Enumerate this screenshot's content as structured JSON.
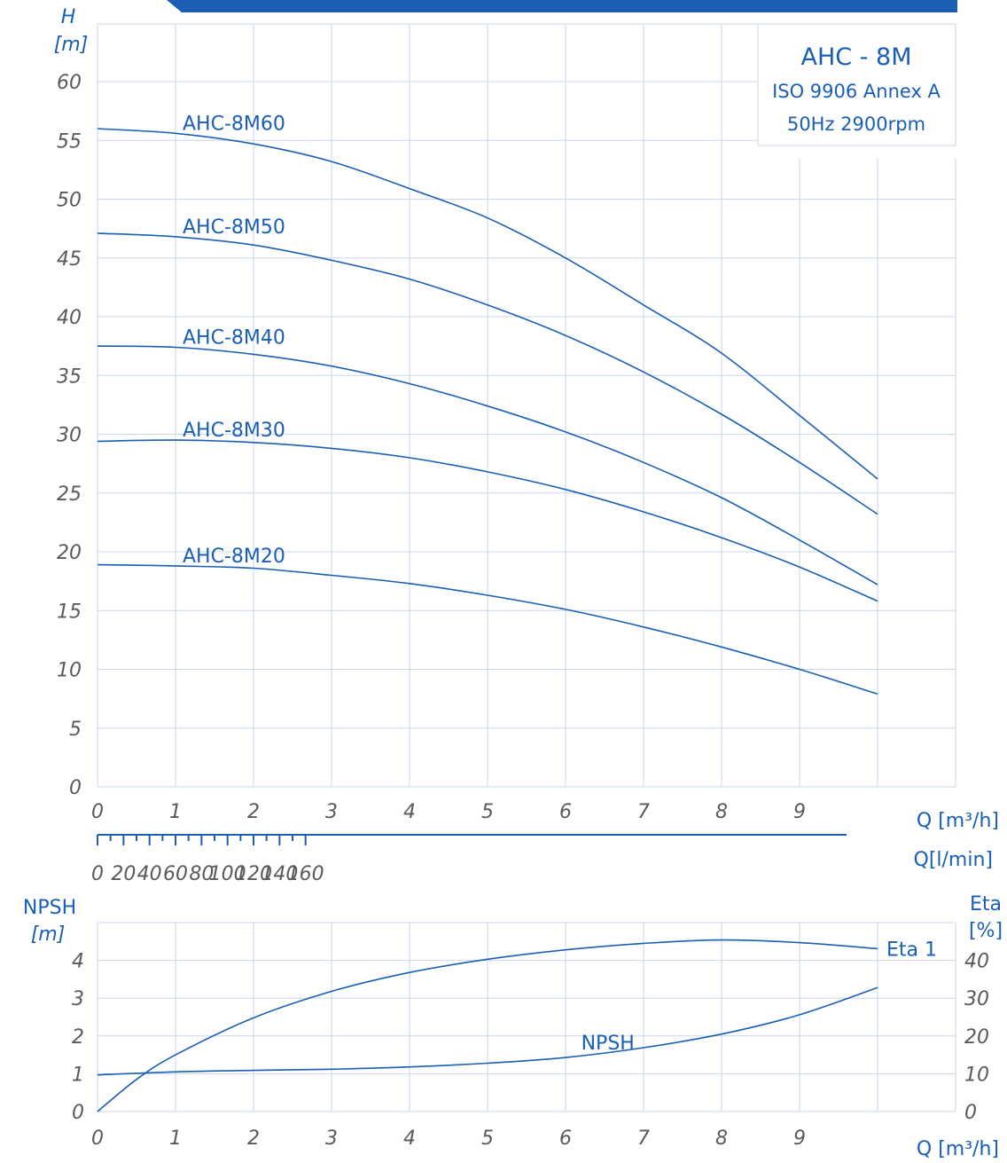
{
  "colors": {
    "accent": "#1a5fb4",
    "grid": "#c9d6ec",
    "tick_text": "#5a5a5a"
  },
  "header_banner": {
    "color": "#1a5fb4"
  },
  "info_box": {
    "model": "AHC - 8M",
    "standard": "ISO 9906 Annex A",
    "speed": "50Hz 2900rpm"
  },
  "chart_data": [
    {
      "type": "line",
      "ylabel_line1": "H",
      "ylabel_line2": "[m]",
      "xlabel": "Q  [m³/h]",
      "xlabel_secondary": "Q[l/min]",
      "xlim": [
        0,
        11
      ],
      "ylim": [
        0,
        60
      ],
      "x_ticks": [
        0,
        1,
        2,
        3,
        4,
        5,
        6,
        7,
        8,
        9
      ],
      "y_ticks": [
        0,
        5,
        10,
        15,
        20,
        25,
        30,
        35,
        40,
        45,
        50,
        55,
        60
      ],
      "secondary_x_ticks": [
        0,
        20,
        40,
        60,
        80,
        100,
        120,
        140,
        160
      ],
      "grid": true,
      "series": [
        {
          "name": "AHC-8M60",
          "x": [
            0,
            1,
            2,
            3,
            4,
            5,
            6,
            7,
            8,
            9,
            10
          ],
          "values": [
            56.0,
            55.6,
            54.7,
            53.2,
            50.9,
            48.4,
            45.0,
            41.0,
            36.9,
            31.6,
            26.2
          ]
        },
        {
          "name": "AHC-8M50",
          "x": [
            0,
            1,
            2,
            3,
            4,
            5,
            6,
            7,
            8,
            9,
            10
          ],
          "values": [
            47.1,
            46.8,
            46.1,
            44.8,
            43.2,
            41.0,
            38.4,
            35.3,
            31.7,
            27.6,
            23.2
          ]
        },
        {
          "name": "AHC-8M40",
          "x": [
            0,
            1,
            2,
            3,
            4,
            5,
            6,
            7,
            8,
            9,
            10
          ],
          "values": [
            37.5,
            37.4,
            36.8,
            35.8,
            34.3,
            32.4,
            30.2,
            27.6,
            24.6,
            21.0,
            17.2
          ]
        },
        {
          "name": "AHC-8M30",
          "x": [
            0,
            1,
            2,
            3,
            4,
            5,
            6,
            7,
            8,
            9,
            10
          ],
          "values": [
            29.4,
            29.5,
            29.3,
            28.8,
            28.0,
            26.8,
            25.3,
            23.4,
            21.2,
            18.7,
            15.8
          ]
        },
        {
          "name": "AHC-8M20",
          "x": [
            0,
            1,
            2,
            3,
            4,
            5,
            6,
            7,
            8,
            9,
            10
          ],
          "values": [
            18.9,
            18.8,
            18.6,
            18.0,
            17.3,
            16.3,
            15.1,
            13.6,
            11.9,
            10.0,
            7.9
          ]
        }
      ]
    },
    {
      "type": "line",
      "ylabel_left_line1": "NPSH",
      "ylabel_left_line2": "[m]",
      "ylabel_right_line1": "Eta",
      "ylabel_right_line2": "[%]",
      "xlabel": "Q  [m³/h]",
      "xlim": [
        0,
        11
      ],
      "ylim_left": [
        0,
        5
      ],
      "ylim_right": [
        0,
        50
      ],
      "x_ticks": [
        0,
        1,
        2,
        3,
        4,
        5,
        6,
        7,
        8,
        9
      ],
      "y_ticks_left": [
        0,
        1,
        2,
        3,
        4
      ],
      "y_ticks_right": [
        0,
        10,
        20,
        30,
        40
      ],
      "grid": true,
      "series": [
        {
          "name": "Eta 1",
          "axis": "right",
          "x": [
            0,
            0.5,
            1,
            2,
            3,
            4,
            5,
            6,
            7,
            8,
            9,
            10
          ],
          "values": [
            0,
            8.5,
            15.0,
            24.8,
            31.8,
            36.8,
            40.3,
            42.8,
            44.5,
            45.4,
            44.7,
            43.1
          ]
        },
        {
          "name": "NPSH",
          "axis": "left",
          "x": [
            0,
            1,
            2,
            3,
            4,
            5,
            6,
            7,
            8,
            9,
            10
          ],
          "values": [
            0.97,
            1.05,
            1.09,
            1.12,
            1.18,
            1.28,
            1.43,
            1.69,
            2.05,
            2.56,
            3.28
          ]
        }
      ]
    }
  ]
}
